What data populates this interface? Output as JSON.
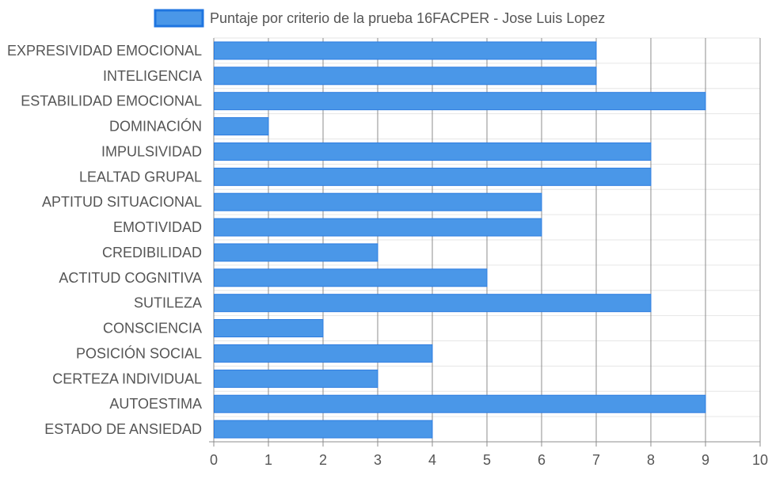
{
  "chart_data": {
    "type": "bar",
    "orientation": "horizontal",
    "categories": [
      "EXPRESIVIDAD EMOCIONAL",
      "INTELIGENCIA",
      "ESTABILIDAD EMOCIONAL",
      "DOMINACIÓN",
      "IMPULSIVIDAD",
      "LEALTAD GRUPAL",
      "APTITUD SITUACIONAL",
      "EMOTIVIDAD",
      "CREDIBILIDAD",
      "ACTITUD COGNITIVA",
      "SUTILEZA",
      "CONSCIENCIA",
      "POSICIÓN SOCIAL",
      "CERTEZA INDIVIDUAL",
      "AUTOESTIMA",
      "ESTADO DE ANSIEDAD"
    ],
    "series": [
      {
        "name": "Puntaje por criterio de la prueba 16FACPER - Jose Luis Lopez",
        "values": [
          7,
          7,
          9,
          1,
          8,
          8,
          6,
          6,
          3,
          5,
          8,
          2,
          4,
          3,
          9,
          4
        ]
      }
    ],
    "x_ticks": [
      "0",
      "1",
      "2",
      "3",
      "4",
      "5",
      "6",
      "7",
      "8",
      "9",
      "10"
    ],
    "xlim": [
      0,
      10
    ],
    "grid": true,
    "legend_position": "top",
    "colors": {
      "bar_fill": "#4a97e8",
      "bar_stroke": "#2c7ce0",
      "legend_fill": "#4a97e8",
      "legend_stroke": "#1f75e0",
      "label_text": "#555555",
      "grid_vertical": "#8c8c8c",
      "grid_horizontal": "#e6e6e6"
    }
  }
}
